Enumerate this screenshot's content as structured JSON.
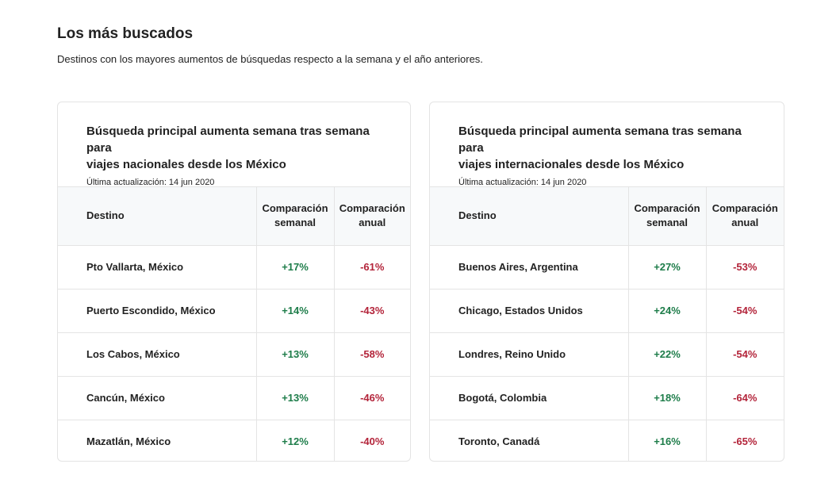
{
  "header": {
    "title": "Los más buscados",
    "subtitle": "Destinos con los mayores aumentos de búsquedas respecto a la semana y el año anteriores."
  },
  "colors": {
    "positive": "#1e7d4a",
    "negative": "#b3243a",
    "table_header_bg": "#f7f9fa"
  },
  "cards": [
    {
      "title_line1": "Búsqueda principal aumenta semana tras semana para",
      "title_line2": "viajes nacionales desde los México",
      "updated": "Última actualización: 14 jun 2020",
      "columns": {
        "destination": "Destino",
        "weekly_line1": "Comparación",
        "weekly_line2": "semanal",
        "annual_line1": "Comparación",
        "annual_line2": "anual"
      },
      "rows": [
        {
          "destination": "Pto Vallarta, México",
          "weekly": "+17%",
          "annual": "-61%"
        },
        {
          "destination": "Puerto Escondido, México",
          "weekly": "+14%",
          "annual": "-43%"
        },
        {
          "destination": "Los Cabos, México",
          "weekly": "+13%",
          "annual": "-58%"
        },
        {
          "destination": "Cancún, México",
          "weekly": "+13%",
          "annual": "-46%"
        },
        {
          "destination": "Mazatlán, México",
          "weekly": "+12%",
          "annual": "-40%"
        }
      ]
    },
    {
      "title_line1": "Búsqueda principal aumenta semana tras semana para",
      "title_line2": "viajes internacionales desde los México",
      "updated": "Última actualización: 14 jun 2020",
      "columns": {
        "destination": "Destino",
        "weekly_line1": "Comparación",
        "weekly_line2": "semanal",
        "annual_line1": "Comparación",
        "annual_line2": "anual"
      },
      "rows": [
        {
          "destination": "Buenos Aires, Argentina",
          "weekly": "+27%",
          "annual": "-53%"
        },
        {
          "destination": "Chicago, Estados Unidos",
          "weekly": "+24%",
          "annual": "-54%"
        },
        {
          "destination": "Londres, Reino Unido",
          "weekly": "+22%",
          "annual": "-54%"
        },
        {
          "destination": "Bogotá, Colombia",
          "weekly": "+18%",
          "annual": "-64%"
        },
        {
          "destination": "Toronto, Canadá",
          "weekly": "+16%",
          "annual": "-65%"
        }
      ]
    }
  ]
}
